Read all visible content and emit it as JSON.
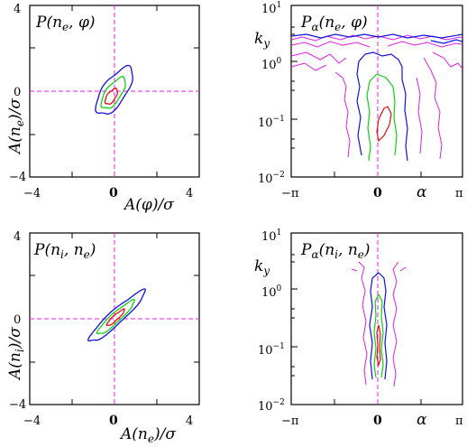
{
  "colors": {
    "outer": "#1010e0",
    "middle": "#10d010",
    "inner": "#e01010",
    "noise": "#e020e0",
    "frame": "#000000"
  },
  "chart_data": [
    {
      "type": "contour",
      "title_base": "P",
      "title_args": [
        "n",
        "e",
        ", ",
        "φ"
      ],
      "xlabel": "A(φ)/σ",
      "ylabel": "A(n",
      "ylabel_sub": "e",
      "ylabel_tail": ")/σ",
      "xlim": [
        -4,
        4
      ],
      "ylim": [
        -4,
        4
      ],
      "xticks": [
        "−4",
        "0",
        "4"
      ],
      "yticks": [
        "4",
        "0",
        "−4"
      ],
      "levels": [
        {
          "name": "outer",
          "center": [
            0,
            0
          ],
          "semi_major": 1.3,
          "semi_minor": 0.55,
          "angle_deg": 55
        },
        {
          "name": "middle",
          "center": [
            -0.05,
            -0.1
          ],
          "semi_major": 0.85,
          "semi_minor": 0.36,
          "angle_deg": 55
        },
        {
          "name": "inner",
          "center": [
            -0.15,
            -0.25
          ],
          "semi_major": 0.42,
          "semi_minor": 0.2,
          "angle_deg": 55
        }
      ]
    },
    {
      "type": "contour",
      "title_base": "P",
      "title_sub": "α",
      "title_args": [
        "n",
        "e",
        ", ",
        "φ"
      ],
      "ylabel": "k",
      "ylabel_sub": "y",
      "xlim": [
        -3.1416,
        3.1416
      ],
      "ylim_log10": [
        -2,
        1
      ],
      "xticks": [
        "−π",
        "0",
        "α",
        "π"
      ],
      "yticks": [
        "10",
        "10",
        "10",
        "10"
      ],
      "yticks_exp": [
        "1",
        "0",
        "−1",
        "−2"
      ]
    },
    {
      "type": "contour",
      "title_base": "P",
      "title_args": [
        "n",
        "i",
        ", ",
        "n",
        "e"
      ],
      "xlabel": "A(n",
      "xlabel_sub": "e",
      "xlabel_tail": ")/σ",
      "ylabel": "A(n",
      "ylabel_sub": "i",
      "ylabel_tail": ")/σ",
      "xlim": [
        -4,
        4
      ],
      "ylim": [
        -4,
        4
      ],
      "xticks": [
        "−4",
        "0",
        "4"
      ],
      "yticks": [
        "4",
        "0",
        "−4"
      ],
      "levels": [
        {
          "name": "outer",
          "center": [
            0.1,
            0.1
          ],
          "semi_major": 1.75,
          "semi_minor": 0.32,
          "angle_deg": 42
        },
        {
          "name": "middle",
          "center": [
            0.05,
            0.05
          ],
          "semi_major": 1.15,
          "semi_minor": 0.22,
          "angle_deg": 42
        },
        {
          "name": "inner",
          "center": [
            0.05,
            0.05
          ],
          "semi_major": 0.55,
          "semi_minor": 0.12,
          "angle_deg": 42
        }
      ]
    },
    {
      "type": "contour",
      "title_base": "P",
      "title_sub": "α",
      "title_args": [
        "n",
        "i",
        ", ",
        "n",
        "e"
      ],
      "ylabel": "k",
      "ylabel_sub": "y",
      "xlim": [
        -3.1416,
        3.1416
      ],
      "ylim_log10": [
        -2,
        1
      ],
      "xticks": [
        "−π",
        "0",
        "α",
        "π"
      ],
      "yticks": [
        "10",
        "10",
        "10",
        "10"
      ],
      "yticks_exp": [
        "1",
        "0",
        "−1",
        "−2"
      ]
    }
  ]
}
